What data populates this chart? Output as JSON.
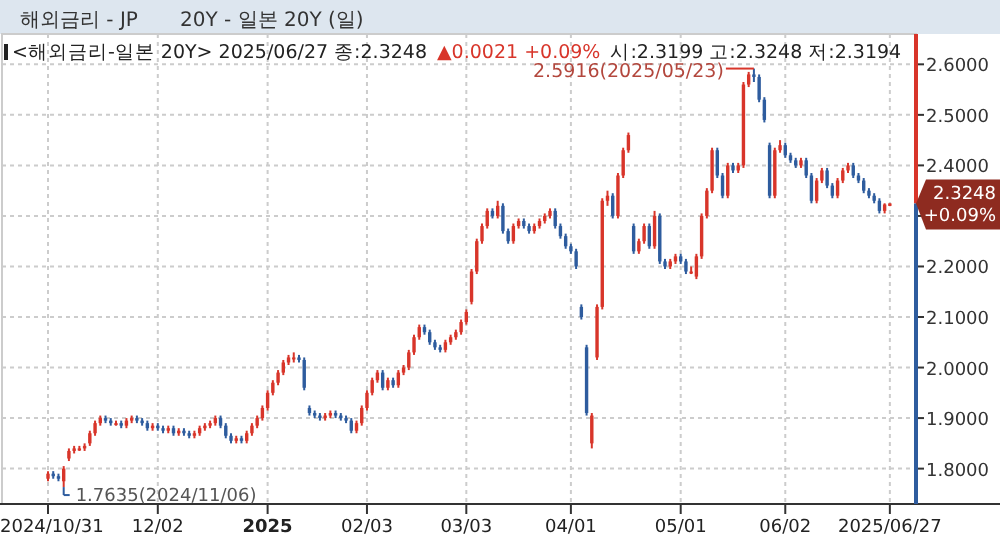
{
  "chart_data": {
    "type": "candlestick",
    "title": "해외금리 - JP",
    "subtitle": "20Y - 일본 20Y (일)",
    "annotations": [
      "<해외금리-일본 20Y> 2025/06/27 종:2.3248",
      "▲0.0021 +0.09%",
      "시:2.3199 고:2.3248 저:2.3194",
      "2.5916(2025/05/23)",
      "1.7635(2024/11/06)",
      "2.3248",
      "+0.09%"
    ],
    "categories": [
      "2024/10/31",
      null,
      null,
      null,
      null,
      null,
      null,
      null,
      null,
      null,
      null,
      null,
      null,
      null,
      null,
      null,
      null,
      null,
      null,
      null,
      null,
      "12/02",
      null,
      null,
      null,
      null,
      null,
      null,
      null,
      null,
      null,
      null,
      null,
      null,
      null,
      null,
      null,
      null,
      null,
      null,
      null,
      null,
      "2025",
      null,
      null,
      null,
      null,
      null,
      null,
      null,
      null,
      null,
      null,
      null,
      null,
      null,
      null,
      null,
      null,
      null,
      null,
      "02/03",
      null,
      null,
      null,
      null,
      null,
      null,
      null,
      null,
      null,
      null,
      null,
      null,
      null,
      null,
      null,
      null,
      null,
      null,
      "03/03",
      null,
      null,
      null,
      null,
      null,
      null,
      null,
      null,
      null,
      null,
      null,
      null,
      null,
      null,
      null,
      null,
      null,
      null,
      null,
      "04/01",
      null,
      null,
      null,
      null,
      null,
      null,
      null,
      null,
      null,
      null,
      null,
      null,
      null,
      null,
      null,
      null,
      null,
      null,
      null,
      null,
      "05/01",
      null,
      null,
      null,
      null,
      null,
      null,
      null,
      null,
      null,
      null,
      null,
      null,
      null,
      null,
      null,
      null,
      null,
      null,
      null,
      "06/02",
      null,
      null,
      null,
      null,
      null,
      null,
      null,
      null,
      null,
      null,
      null,
      null,
      null,
      null,
      null,
      null,
      null,
      null,
      null,
      "2025/06/27"
    ],
    "ohlc": [
      [
        1.78,
        1.795,
        1.775,
        1.79
      ],
      [
        1.79,
        1.795,
        1.78,
        1.785
      ],
      [
        1.785,
        1.79,
        1.775,
        1.78
      ],
      [
        1.775,
        1.805,
        1.7635,
        1.8
      ],
      [
        1.82,
        1.84,
        1.815,
        1.835
      ],
      [
        1.835,
        1.845,
        1.83,
        1.84
      ],
      [
        1.84,
        1.845,
        1.835,
        1.84
      ],
      [
        1.84,
        1.85,
        1.835,
        1.845
      ],
      [
        1.85,
        1.875,
        1.845,
        1.87
      ],
      [
        1.87,
        1.895,
        1.865,
        1.89
      ],
      [
        1.89,
        1.905,
        1.885,
        1.9
      ],
      [
        1.9,
        1.905,
        1.89,
        1.895
      ],
      [
        1.895,
        1.9,
        1.885,
        1.89
      ],
      [
        1.89,
        1.895,
        1.885,
        1.89
      ],
      [
        1.89,
        1.895,
        1.88,
        1.885
      ],
      [
        1.885,
        1.9,
        1.88,
        1.895
      ],
      [
        1.895,
        1.905,
        1.89,
        1.9
      ],
      [
        1.9,
        1.905,
        1.89,
        1.895
      ],
      [
        1.895,
        1.9,
        1.885,
        1.89
      ],
      [
        1.89,
        1.895,
        1.875,
        1.88
      ],
      [
        1.88,
        1.89,
        1.875,
        1.885
      ],
      [
        1.885,
        1.89,
        1.875,
        1.88
      ],
      [
        1.88,
        1.885,
        1.87,
        1.875
      ],
      [
        1.875,
        1.885,
        1.87,
        1.88
      ],
      [
        1.88,
        1.885,
        1.865,
        1.87
      ],
      [
        1.87,
        1.88,
        1.865,
        1.875
      ],
      [
        1.875,
        1.88,
        1.865,
        1.87
      ],
      [
        1.87,
        1.875,
        1.86,
        1.865
      ],
      [
        1.865,
        1.875,
        1.86,
        1.87
      ],
      [
        1.87,
        1.885,
        1.865,
        1.88
      ],
      [
        1.88,
        1.89,
        1.875,
        1.885
      ],
      [
        1.885,
        1.895,
        1.88,
        1.89
      ],
      [
        1.89,
        1.905,
        1.885,
        1.9
      ],
      [
        1.9,
        1.905,
        1.88,
        1.885
      ],
      [
        1.885,
        1.89,
        1.86,
        1.865
      ],
      [
        1.865,
        1.87,
        1.85,
        1.855
      ],
      [
        1.855,
        1.865,
        1.85,
        1.86
      ],
      [
        1.86,
        1.865,
        1.85,
        1.855
      ],
      [
        1.855,
        1.875,
        1.85,
        1.87
      ],
      [
        1.87,
        1.89,
        1.865,
        1.885
      ],
      [
        1.885,
        1.905,
        1.88,
        1.9
      ],
      [
        1.9,
        1.925,
        1.895,
        1.92
      ],
      [
        1.92,
        1.955,
        1.915,
        1.95
      ],
      [
        1.95,
        1.975,
        1.945,
        1.97
      ],
      [
        1.97,
        1.995,
        1.965,
        1.99
      ],
      [
        1.99,
        2.015,
        1.985,
        2.01
      ],
      [
        2.01,
        2.025,
        2.005,
        2.02
      ],
      [
        2.02,
        2.03,
        2.01,
        2.02
      ],
      [
        2.02,
        2.025,
        2.01,
        2.015
      ],
      [
        2.015,
        2.02,
        1.955,
        1.96
      ],
      [
        1.92,
        1.925,
        1.905,
        1.91
      ],
      [
        1.91,
        1.915,
        1.9,
        1.905
      ],
      [
        1.905,
        1.91,
        1.895,
        1.9
      ],
      [
        1.9,
        1.91,
        1.895,
        1.905
      ],
      [
        1.905,
        1.915,
        1.9,
        1.91
      ],
      [
        1.91,
        1.915,
        1.9,
        1.905
      ],
      [
        1.905,
        1.91,
        1.895,
        1.9
      ],
      [
        1.9,
        1.905,
        1.89,
        1.895
      ],
      [
        1.895,
        1.9,
        1.87,
        1.875
      ],
      [
        1.875,
        1.895,
        1.87,
        1.89
      ],
      [
        1.89,
        1.925,
        1.885,
        1.92
      ],
      [
        1.92,
        1.955,
        1.915,
        1.95
      ],
      [
        1.95,
        1.98,
        1.945,
        1.975
      ],
      [
        1.975,
        1.995,
        1.97,
        1.99
      ],
      [
        1.99,
        1.995,
        1.955,
        1.96
      ],
      [
        1.96,
        1.98,
        1.955,
        1.975
      ],
      [
        1.975,
        1.98,
        1.96,
        1.965
      ],
      [
        1.965,
        1.995,
        1.96,
        1.99
      ],
      [
        1.99,
        2.005,
        1.985,
        2.0
      ],
      [
        2.0,
        2.035,
        1.995,
        2.03
      ],
      [
        2.03,
        2.065,
        2.025,
        2.06
      ],
      [
        2.06,
        2.085,
        2.055,
        2.08
      ],
      [
        2.08,
        2.085,
        2.065,
        2.07
      ],
      [
        2.07,
        2.075,
        2.045,
        2.05
      ],
      [
        2.05,
        2.055,
        2.035,
        2.04
      ],
      [
        2.04,
        2.045,
        2.03,
        2.035
      ],
      [
        2.035,
        2.055,
        2.03,
        2.05
      ],
      [
        2.05,
        2.065,
        2.045,
        2.06
      ],
      [
        2.06,
        2.075,
        2.055,
        2.07
      ],
      [
        2.07,
        2.095,
        2.065,
        2.09
      ],
      [
        2.09,
        2.115,
        2.085,
        2.11
      ],
      [
        2.13,
        2.195,
        2.125,
        2.19
      ],
      [
        2.19,
        2.255,
        2.185,
        2.25
      ],
      [
        2.25,
        2.285,
        2.245,
        2.28
      ],
      [
        2.28,
        2.315,
        2.275,
        2.31
      ],
      [
        2.31,
        2.315,
        2.295,
        2.3
      ],
      [
        2.3,
        2.33,
        2.295,
        2.32
      ],
      [
        2.32,
        2.325,
        2.265,
        2.27
      ],
      [
        2.27,
        2.275,
        2.245,
        2.25
      ],
      [
        2.25,
        2.285,
        2.245,
        2.28
      ],
      [
        2.28,
        2.295,
        2.275,
        2.29
      ],
      [
        2.29,
        2.295,
        2.275,
        2.28
      ],
      [
        2.28,
        2.285,
        2.265,
        2.27
      ],
      [
        2.27,
        2.285,
        2.265,
        2.28
      ],
      [
        2.28,
        2.295,
        2.275,
        2.29
      ],
      [
        2.29,
        2.305,
        2.285,
        2.3
      ],
      [
        2.3,
        2.315,
        2.295,
        2.31
      ],
      [
        2.31,
        2.315,
        2.275,
        2.28
      ],
      [
        2.28,
        2.285,
        2.255,
        2.26
      ],
      [
        2.26,
        2.265,
        2.235,
        2.24
      ],
      [
        2.24,
        2.245,
        2.225,
        2.23
      ],
      [
        2.23,
        2.235,
        2.195,
        2.2
      ],
      [
        2.12,
        2.125,
        2.095,
        2.1
      ],
      [
        2.04,
        2.045,
        1.905,
        1.91
      ],
      [
        1.85,
        1.91,
        1.84,
        1.905
      ],
      [
        2.02,
        2.125,
        2.015,
        2.12
      ],
      [
        2.12,
        2.335,
        2.115,
        2.33
      ],
      [
        2.33,
        2.35,
        2.32,
        2.34
      ],
      [
        2.34,
        2.345,
        2.295,
        2.3
      ],
      [
        2.3,
        2.385,
        2.295,
        2.38
      ],
      [
        2.38,
        2.435,
        2.375,
        2.43
      ],
      [
        2.43,
        2.465,
        2.425,
        2.46
      ],
      [
        2.28,
        2.285,
        2.225,
        2.23
      ],
      [
        2.23,
        2.255,
        2.225,
        2.25
      ],
      [
        2.25,
        2.285,
        2.245,
        2.28
      ],
      [
        2.28,
        2.285,
        2.235,
        2.24
      ],
      [
        2.24,
        2.31,
        2.235,
        2.3
      ],
      [
        2.3,
        2.305,
        2.205,
        2.21
      ],
      [
        2.21,
        2.215,
        2.195,
        2.2
      ],
      [
        2.2,
        2.215,
        2.195,
        2.21
      ],
      [
        2.21,
        2.225,
        2.205,
        2.22
      ],
      [
        2.22,
        2.225,
        2.205,
        2.21
      ],
      [
        2.21,
        2.215,
        2.185,
        2.19
      ],
      [
        2.19,
        2.2,
        2.185,
        2.19
      ],
      [
        2.18,
        2.225,
        2.175,
        2.22
      ],
      [
        2.22,
        2.305,
        2.215,
        2.3
      ],
      [
        2.3,
        2.355,
        2.295,
        2.35
      ],
      [
        2.35,
        2.435,
        2.345,
        2.43
      ],
      [
        2.43,
        2.435,
        2.375,
        2.38
      ],
      [
        2.38,
        2.385,
        2.335,
        2.34
      ],
      [
        2.34,
        2.405,
        2.335,
        2.4
      ],
      [
        2.4,
        2.405,
        2.385,
        2.39
      ],
      [
        2.39,
        2.405,
        2.385,
        2.4
      ],
      [
        2.4,
        2.565,
        2.395,
        2.56
      ],
      [
        2.56,
        2.585,
        2.555,
        2.58
      ],
      [
        2.58,
        2.5916,
        2.565,
        2.575
      ],
      [
        2.575,
        2.58,
        2.525,
        2.53
      ],
      [
        2.53,
        2.535,
        2.485,
        2.49
      ],
      [
        2.44,
        2.445,
        2.335,
        2.34
      ],
      [
        2.34,
        2.435,
        2.335,
        2.43
      ],
      [
        2.43,
        2.45,
        2.425,
        2.44
      ],
      [
        2.44,
        2.445,
        2.415,
        2.42
      ],
      [
        2.42,
        2.425,
        2.405,
        2.41
      ],
      [
        2.41,
        2.415,
        2.395,
        2.4
      ],
      [
        2.4,
        2.415,
        2.395,
        2.41
      ],
      [
        2.41,
        2.415,
        2.375,
        2.38
      ],
      [
        2.38,
        2.385,
        2.325,
        2.33
      ],
      [
        2.33,
        2.375,
        2.325,
        2.37
      ],
      [
        2.37,
        2.395,
        2.365,
        2.39
      ],
      [
        2.39,
        2.395,
        2.355,
        2.36
      ],
      [
        2.36,
        2.365,
        2.335,
        2.34
      ],
      [
        2.34,
        2.375,
        2.335,
        2.37
      ],
      [
        2.37,
        2.395,
        2.365,
        2.39
      ],
      [
        2.39,
        2.405,
        2.385,
        2.4
      ],
      [
        2.4,
        2.405,
        2.375,
        2.38
      ],
      [
        2.38,
        2.385,
        2.365,
        2.37
      ],
      [
        2.37,
        2.375,
        2.345,
        2.35
      ],
      [
        2.35,
        2.355,
        2.335,
        2.34
      ],
      [
        2.34,
        2.345,
        2.325,
        2.33
      ],
      [
        2.33,
        2.335,
        2.305,
        2.31
      ],
      [
        2.31,
        2.325,
        2.305,
        2.3227
      ],
      [
        2.3199,
        2.3248,
        2.3194,
        2.3248
      ]
    ],
    "ylim": [
      1.73,
      2.66
    ],
    "yticks": [
      {
        "value": 1.8,
        "label": "1.8000"
      },
      {
        "value": 1.9,
        "label": "1.9000"
      },
      {
        "value": 2.0,
        "label": "2.0000"
      },
      {
        "value": 2.1,
        "label": "2.1000"
      },
      {
        "value": 2.2,
        "label": "2.2000"
      },
      {
        "value": 2.3,
        "label": null
      },
      {
        "value": 2.4,
        "label": "2.4000"
      },
      {
        "value": 2.5,
        "label": "2.5000"
      },
      {
        "value": 2.6,
        "label": "2.6000"
      }
    ],
    "grid": true
  }
}
